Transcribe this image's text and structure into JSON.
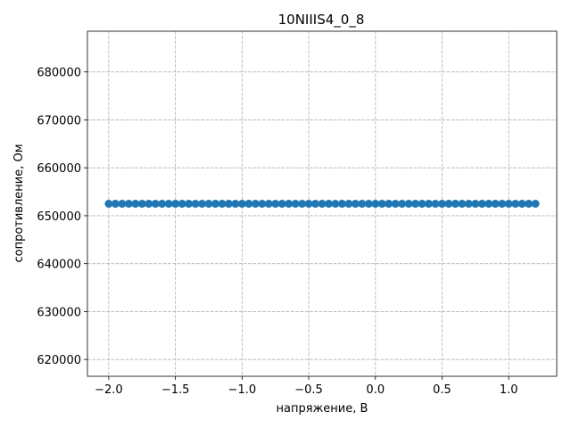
{
  "chart_data": {
    "type": "line",
    "title": "10NIIIS4_0_8",
    "xlabel": "напряжение, В",
    "ylabel": "сопротивление, Ом",
    "xlim": [
      -2.16,
      1.36
    ],
    "ylim": [
      616500,
      688500
    ],
    "xticks": [
      -2.0,
      -1.5,
      -1.0,
      -0.5,
      0.0,
      0.5,
      1.0
    ],
    "xtick_labels": [
      "−2.0",
      "−1.5",
      "−1.0",
      "−0.5",
      "0.0",
      "0.5",
      "1.0"
    ],
    "yticks": [
      620000,
      630000,
      640000,
      650000,
      660000,
      670000,
      680000
    ],
    "ytick_labels": [
      "620000",
      "630000",
      "640000",
      "650000",
      "660000",
      "670000",
      "680000"
    ],
    "grid": true,
    "marker": "circle",
    "series": [
      {
        "color": "#1f77b4",
        "x_start": -2.0,
        "x_end": 1.2,
        "x_step": 0.05,
        "y_constant": 652500
      }
    ]
  }
}
